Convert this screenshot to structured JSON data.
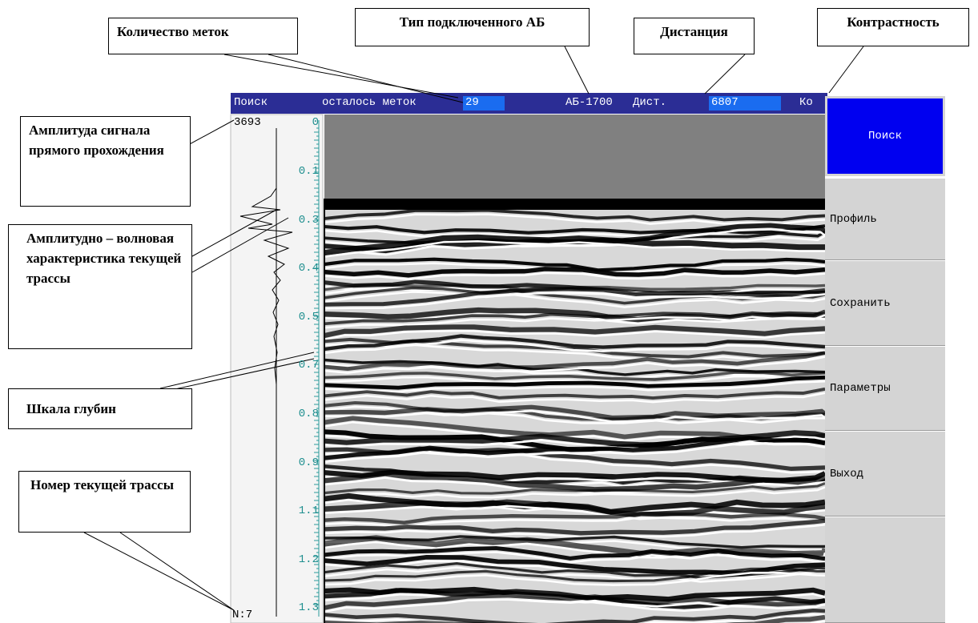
{
  "callouts": {
    "marks_count": "Количество меток",
    "battery_type": "Тип подключенного АБ",
    "distance": "Дистанция",
    "contrast": "Контрастность",
    "direct_amplitude": "Амплитуда сигнала прямого прохождения",
    "wave_characteristic": "Амплитудно – волновая характеристика текущей трассы",
    "depth_scale": "Шкала глубин",
    "trace_number": "Номер текущей трассы"
  },
  "status_bar": {
    "mode": "Поиск",
    "marks_label": "осталось меток",
    "marks_value": "29",
    "battery": "АБ-1700",
    "distance_label": "Дист.",
    "distance_value": "6807",
    "contrast_label": "Ко"
  },
  "buttons": [
    "Поиск",
    "Профиль",
    "Сохранить",
    "Параметры",
    "Выход"
  ],
  "trace_panel": {
    "amplitude": "3693",
    "depth_scale": [
      "0",
      "0.1",
      "0.3",
      "0.4",
      "0.5",
      "0.7",
      "0.8",
      "0.9",
      "1.1",
      "1.2",
      "1.3"
    ],
    "trace_number": "N:7"
  }
}
